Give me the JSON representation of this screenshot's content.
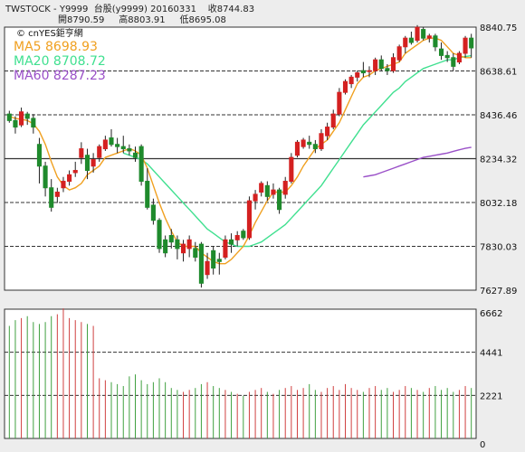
{
  "header": {
    "line1": "TWSTOCK - Y9999  台股(y9999) 20160331    收8744.83",
    "line2": "開8790.59     高8803.91     低8695.08"
  },
  "chart_data": {
    "type": "candlestick",
    "source_label": "© cnYES鉅亨網",
    "legend": [
      {
        "label": "MA5 8698.93",
        "color": "#f0a020"
      },
      {
        "label": "MA20 8708.72",
        "color": "#40e090"
      },
      {
        "label": "MA60 8287.23",
        "color": "#9a50c8"
      }
    ],
    "price_axis": {
      "ticks": [
        "8840.75",
        "8638.61",
        "8436.46",
        "8234.32",
        "8032.18",
        "7830.03",
        "7627.89"
      ],
      "ylim": [
        7627.89,
        8840.75
      ],
      "last_close": 8744.83
    },
    "volume_axis": {
      "ticks": [
        "6662",
        "4441",
        "2221",
        "0"
      ],
      "ylim": [
        0,
        6662
      ]
    },
    "candles": [
      [
        8440,
        8455,
        8400,
        8410
      ],
      [
        8410,
        8430,
        8350,
        8380
      ],
      [
        8390,
        8470,
        8380,
        8450
      ],
      [
        8440,
        8450,
        8390,
        8420
      ],
      [
        8420,
        8440,
        8350,
        8380
      ],
      [
        8300,
        8330,
        8120,
        8200
      ],
      [
        8200,
        8220,
        8060,
        8100
      ],
      [
        8100,
        8140,
        7990,
        8010
      ],
      [
        8060,
        8100,
        8030,
        8080
      ],
      [
        8100,
        8150,
        8080,
        8130
      ],
      [
        8130,
        8180,
        8110,
        8160
      ],
      [
        8170,
        8220,
        8150,
        8180
      ],
      [
        8240,
        8310,
        8210,
        8280
      ],
      [
        8250,
        8280,
        8140,
        8180
      ],
      [
        8200,
        8260,
        8170,
        8230
      ],
      [
        8240,
        8300,
        8220,
        8290
      ],
      [
        8280,
        8340,
        8270,
        8320
      ],
      [
        8330,
        8370,
        8290,
        8300
      ],
      [
        8300,
        8330,
        8260,
        8290
      ],
      [
        8290,
        8340,
        8260,
        8280
      ],
      [
        8280,
        8300,
        8250,
        8270
      ],
      [
        8260,
        8290,
        8220,
        8240
      ],
      [
        8290,
        8300,
        8110,
        8130
      ],
      [
        8130,
        8190,
        8000,
        8010
      ],
      [
        8020,
        8050,
        7930,
        7950
      ],
      [
        7950,
        7960,
        7800,
        7820
      ],
      [
        7860,
        7880,
        7780,
        7800
      ],
      [
        7880,
        7910,
        7820,
        7850
      ],
      [
        7860,
        7880,
        7770,
        7820
      ],
      [
        7800,
        7860,
        7760,
        7840
      ],
      [
        7820,
        7880,
        7780,
        7860
      ],
      [
        7820,
        7850,
        7760,
        7780
      ],
      [
        7840,
        7850,
        7640,
        7660
      ],
      [
        7700,
        7800,
        7680,
        7760
      ],
      [
        7810,
        7830,
        7700,
        7730
      ],
      [
        7770,
        7800,
        7700,
        7760
      ],
      [
        7780,
        7880,
        7770,
        7860
      ],
      [
        7860,
        7890,
        7800,
        7840
      ],
      [
        7860,
        7900,
        7830,
        7880
      ],
      [
        7900,
        7910,
        7860,
        7870
      ],
      [
        7870,
        8060,
        7860,
        8040
      ],
      [
        8040,
        8090,
        8000,
        8070
      ],
      [
        8080,
        8130,
        8060,
        8120
      ],
      [
        8110,
        8130,
        8040,
        8060
      ],
      [
        8070,
        8120,
        8050,
        8090
      ],
      [
        8090,
        8100,
        7980,
        8000
      ],
      [
        8070,
        8150,
        8050,
        8130
      ],
      [
        8130,
        8260,
        8120,
        8240
      ],
      [
        8250,
        8320,
        8240,
        8310
      ],
      [
        8290,
        8330,
        8280,
        8320
      ],
      [
        8310,
        8340,
        8280,
        8300
      ],
      [
        8300,
        8320,
        8260,
        8280
      ],
      [
        8280,
        8370,
        8270,
        8350
      ],
      [
        8340,
        8400,
        8320,
        8380
      ],
      [
        8380,
        8460,
        8370,
        8440
      ],
      [
        8440,
        8560,
        8430,
        8540
      ],
      [
        8540,
        8600,
        8530,
        8590
      ],
      [
        8580,
        8620,
        8560,
        8610
      ],
      [
        8610,
        8640,
        8590,
        8630
      ],
      [
        8640,
        8680,
        8610,
        8630
      ],
      [
        8640,
        8660,
        8610,
        8640
      ],
      [
        8640,
        8700,
        8620,
        8690
      ],
      [
        8690,
        8710,
        8640,
        8650
      ],
      [
        8650,
        8670,
        8620,
        8640
      ],
      [
        8640,
        8720,
        8630,
        8700
      ],
      [
        8690,
        8760,
        8680,
        8750
      ],
      [
        8750,
        8800,
        8720,
        8790
      ],
      [
        8790,
        8820,
        8760,
        8770
      ],
      [
        8780,
        8850,
        8770,
        8840
      ],
      [
        8830,
        8840,
        8780,
        8790
      ],
      [
        8790,
        8810,
        8770,
        8800
      ],
      [
        8800,
        8810,
        8730,
        8750
      ],
      [
        8740,
        8770,
        8690,
        8710
      ],
      [
        8710,
        8730,
        8680,
        8700
      ],
      [
        8700,
        8720,
        8640,
        8660
      ],
      [
        8680,
        8730,
        8670,
        8720
      ],
      [
        8720,
        8800,
        8700,
        8790
      ],
      [
        8790,
        8810,
        8700,
        8745
      ]
    ],
    "ma5": [
      8430,
      8420,
      8415,
      8410,
      8395,
      8360,
      8300,
      8220,
      8150,
      8110,
      8090,
      8100,
      8120,
      8160,
      8180,
      8200,
      8240,
      8250,
      8260,
      8270,
      8280,
      8270,
      8250,
      8190,
      8110,
      8030,
      7960,
      7900,
      7850,
      7830,
      7830,
      7830,
      7800,
      7780,
      7760,
      7750,
      7750,
      7770,
      7800,
      7830,
      7880,
      7940,
      7990,
      8040,
      8080,
      8080,
      8080,
      8110,
      8150,
      8200,
      8240,
      8280,
      8300,
      8320,
      8360,
      8400,
      8460,
      8520,
      8580,
      8610,
      8620,
      8640,
      8650,
      8660,
      8670,
      8680,
      8720,
      8740,
      8760,
      8780,
      8790,
      8790,
      8780,
      8750,
      8720,
      8710,
      8700,
      8700
    ],
    "ma20": [
      null,
      null,
      null,
      null,
      null,
      null,
      null,
      null,
      null,
      null,
      null,
      null,
      null,
      null,
      null,
      null,
      null,
      null,
      null,
      8260,
      8250,
      8240,
      8230,
      8210,
      8180,
      8150,
      8120,
      8090,
      8060,
      8030,
      8000,
      7970,
      7940,
      7910,
      7890,
      7870,
      7850,
      7840,
      7830,
      7830,
      7830,
      7840,
      7850,
      7870,
      7890,
      7910,
      7930,
      7960,
      7990,
      8020,
      8050,
      8080,
      8110,
      8150,
      8190,
      8230,
      8270,
      8310,
      8350,
      8390,
      8420,
      8450,
      8480,
      8510,
      8540,
      8560,
      8590,
      8610,
      8630,
      8650,
      8660,
      8670,
      8680,
      8690,
      8690,
      8700,
      8705,
      8709
    ],
    "ma60": [
      null,
      null,
      null,
      null,
      null,
      null,
      null,
      null,
      null,
      null,
      null,
      null,
      null,
      null,
      null,
      null,
      null,
      null,
      null,
      null,
      null,
      null,
      null,
      null,
      null,
      null,
      null,
      null,
      null,
      null,
      null,
      null,
      null,
      null,
      null,
      null,
      null,
      null,
      null,
      null,
      null,
      null,
      null,
      null,
      null,
      null,
      null,
      null,
      null,
      null,
      null,
      null,
      null,
      null,
      null,
      null,
      null,
      null,
      null,
      8150,
      8155,
      8160,
      8170,
      8180,
      8190,
      8200,
      8210,
      8220,
      8230,
      8240,
      8245,
      8250,
      8255,
      8260,
      8268,
      8275,
      8282,
      8287
    ],
    "volume": [
      5800,
      6100,
      6200,
      6300,
      6000,
      5900,
      6000,
      6300,
      6400,
      6700,
      6200,
      6100,
      6000,
      5900,
      5800,
      3100,
      3000,
      2900,
      2800,
      2700,
      3200,
      3300,
      3000,
      2800,
      2900,
      3100,
      2900,
      2600,
      2500,
      2400,
      2500,
      2600,
      2800,
      2900,
      2700,
      2600,
      2500,
      2400,
      2300,
      2200,
      2400,
      2500,
      2600,
      2400,
      2300,
      2500,
      2600,
      2700,
      2500,
      2600,
      2800,
      2500,
      2400,
      2600,
      2700,
      2500,
      2800,
      2600,
      2500,
      2400,
      2600,
      2700,
      2500,
      2600,
      2400,
      2500,
      2700,
      2600,
      2500,
      2400,
      2600,
      2700,
      2500,
      2600,
      2400,
      2500,
      2700,
      2600
    ]
  }
}
